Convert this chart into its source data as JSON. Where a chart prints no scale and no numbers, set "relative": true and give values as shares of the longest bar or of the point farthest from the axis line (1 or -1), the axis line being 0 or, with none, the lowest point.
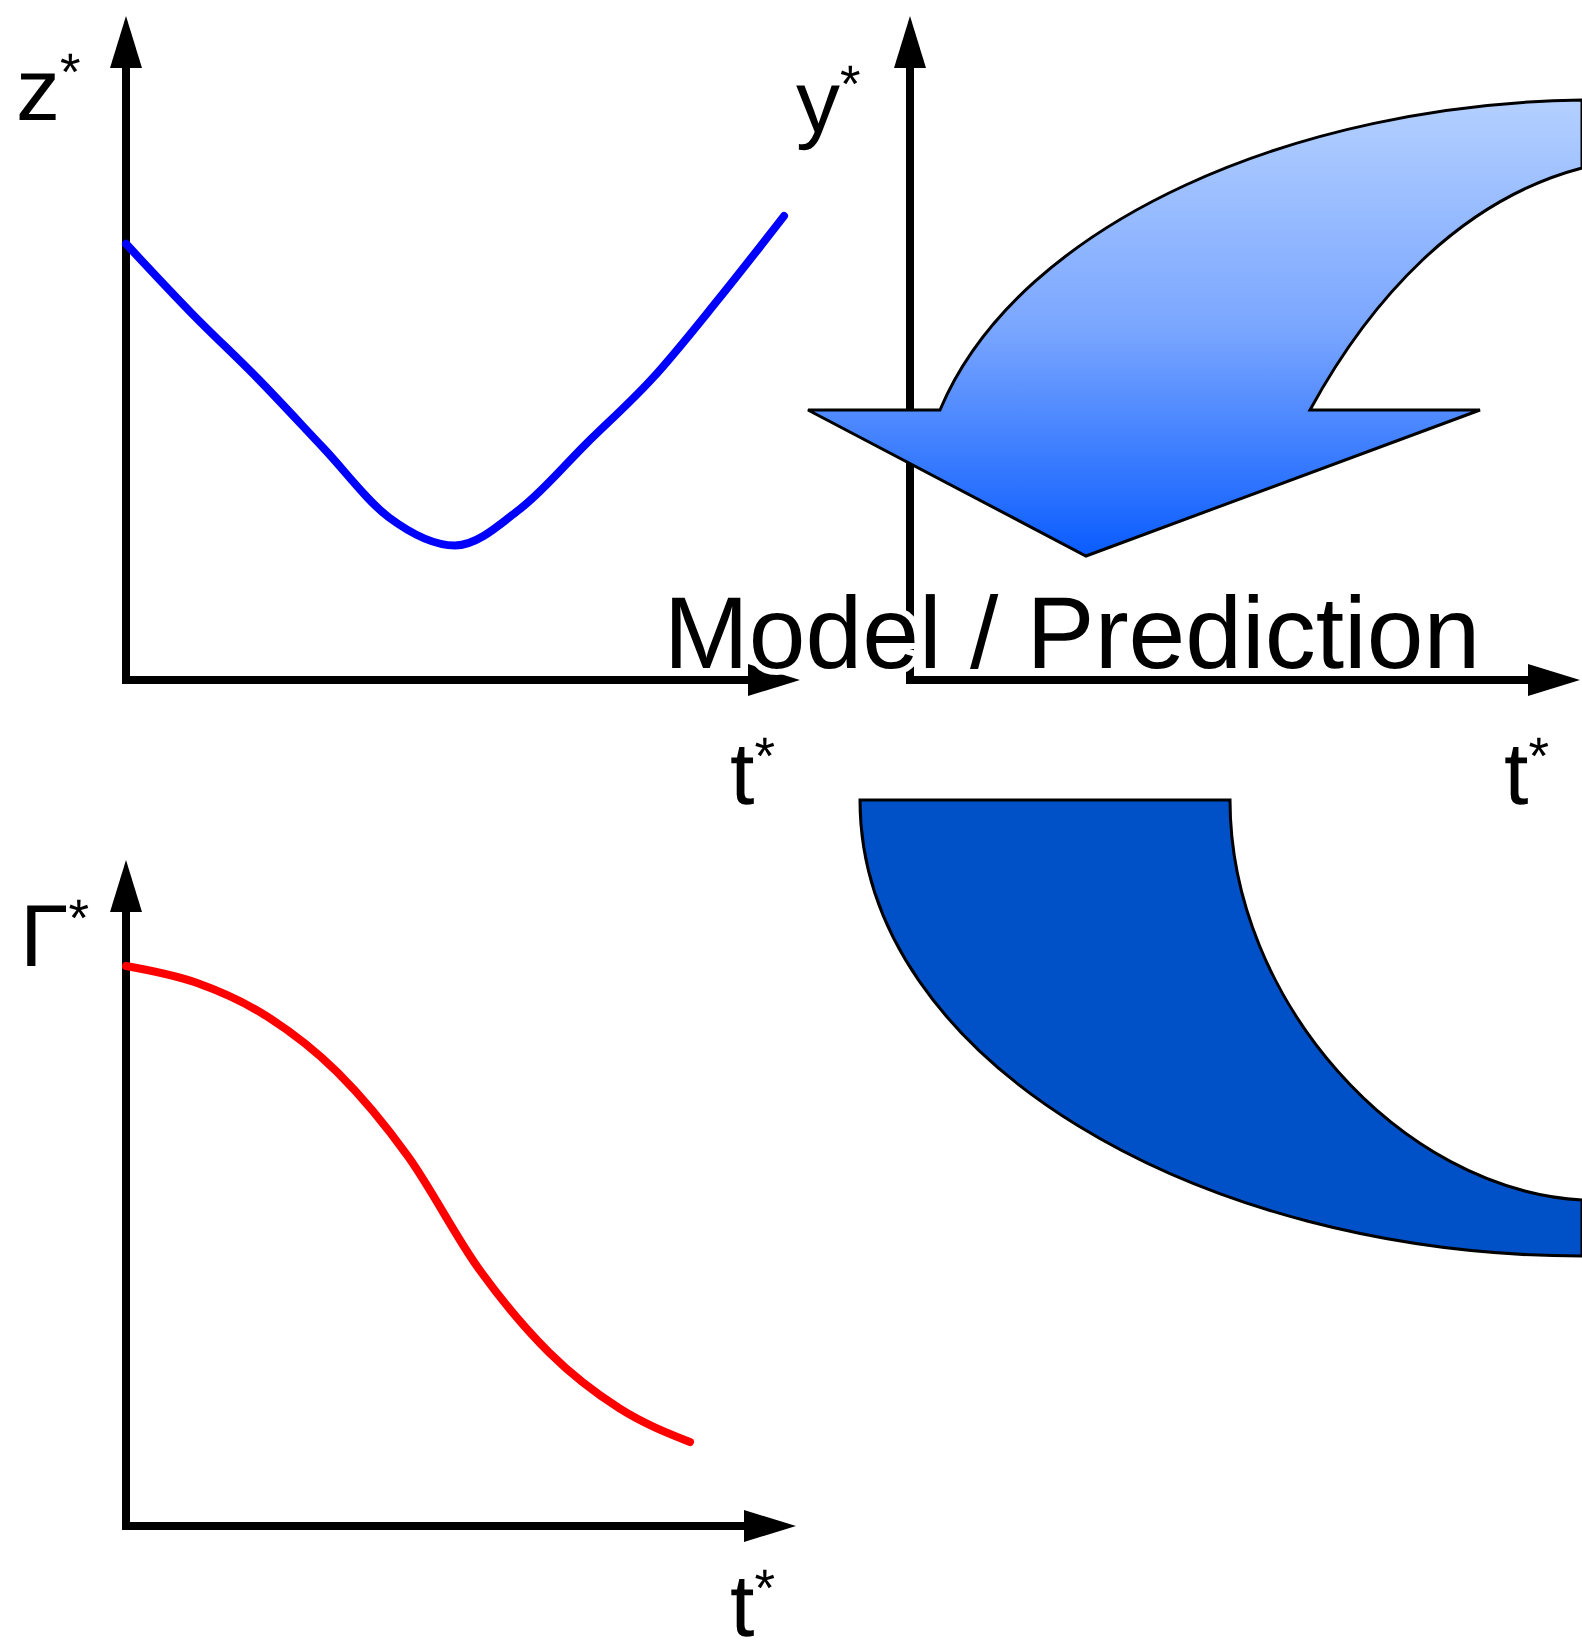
{
  "chart_data": [
    {
      "type": "line",
      "ylabel": "z$^{*}$",
      "xlabel": "t$^{*}$",
      "relative": true,
      "categories": [
        null,
        null,
        null,
        null,
        null,
        null,
        null,
        null,
        null,
        null,
        null
      ],
      "series": [
        {
          "color": "#0000ff",
          "values": [
            0.94,
            0.79,
            0.65,
            0.5,
            0.35,
            0.29,
            0.37,
            0.51,
            0.65,
            0.82,
            1
          ]
        }
      ]
    },
    {
      "type": "other",
      "ylabel": "y$^{*}$",
      "xlabel": "t$^{*}$",
      "annotations": [
        "Model / Prediction"
      ]
    },
    {
      "type": "line",
      "ylabel": "Γ$^{*}$",
      "xlabel": "t$^{*}$",
      "relative": true,
      "categories": [
        null,
        null,
        null,
        null,
        null,
        null,
        null,
        null,
        null
      ],
      "series": [
        {
          "color": "#ff0000",
          "values": [
            1,
            0.97,
            0.91,
            0.81,
            0.66,
            0.46,
            0.31,
            0.21,
            0.15
          ]
        }
      ]
    }
  ]
}
